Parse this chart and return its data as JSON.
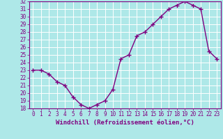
{
  "x": [
    0,
    1,
    2,
    3,
    4,
    5,
    6,
    7,
    8,
    9,
    10,
    11,
    12,
    13,
    14,
    15,
    16,
    17,
    18,
    19,
    20,
    21,
    22,
    23
  ],
  "y": [
    23,
    23,
    22.5,
    21.5,
    21,
    19.5,
    18.5,
    18,
    18.5,
    19,
    20.5,
    24.5,
    25,
    27.5,
    28,
    29,
    30,
    31,
    31.5,
    32,
    31.5,
    31,
    25.5,
    24.5
  ],
  "line_color": "#800080",
  "marker": "+",
  "marker_size": 4,
  "bg_color": "#aee8e8",
  "grid_color": "#ffffff",
  "tick_color": "#800080",
  "xlabel": "Windchill (Refroidissement éolien,°C)",
  "xlabel_color": "#800080",
  "ylim": [
    18,
    32
  ],
  "xlim": [
    -0.5,
    23.5
  ],
  "yticks": [
    18,
    19,
    20,
    21,
    22,
    23,
    24,
    25,
    26,
    27,
    28,
    29,
    30,
    31,
    32
  ],
  "xticks": [
    0,
    1,
    2,
    3,
    4,
    5,
    6,
    7,
    8,
    9,
    10,
    11,
    12,
    13,
    14,
    15,
    16,
    17,
    18,
    19,
    20,
    21,
    22,
    23
  ],
  "tick_label_fontsize": 5.5,
  "xlabel_fontsize": 6.5,
  "line_width": 1.0
}
